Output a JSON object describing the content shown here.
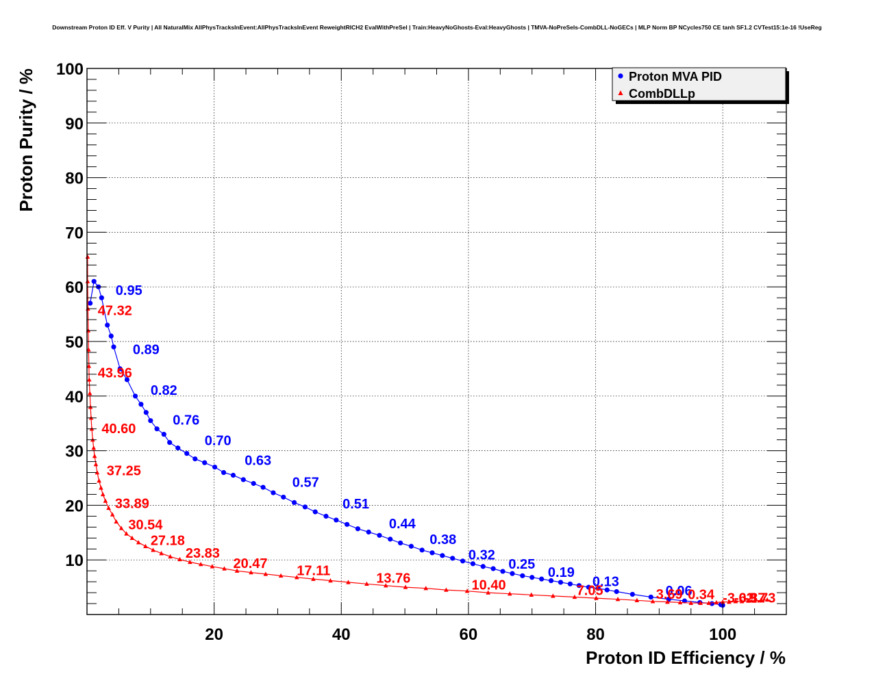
{
  "chart_data": {
    "type": "scatter",
    "title": "Downstream Proton ID Eff. V Purity | All NaturalMix AllPhysTracksInEvent:AllPhysTracksInEvent ReweightRICH2 EvalWithPreSel | Train:HeavyNoGhosts-Eval:HeavyGhosts | TMVA-NoPreSels-CombDLL-NoGECs | MLP Norm BP NCycles750 CE tanh SF1.2 CVTest15:1e-16 !UseReg",
    "xlabel": "Proton ID Efficiency / %",
    "ylabel": "Proton Purity / %",
    "xlim": [
      0,
      110
    ],
    "ylim": [
      0,
      100
    ],
    "x_ticks": [
      "20",
      "40",
      "60",
      "80",
      "100"
    ],
    "y_ticks": [
      "10",
      "20",
      "30",
      "40",
      "50",
      "60",
      "70",
      "80",
      "90",
      "100"
    ],
    "grid": true,
    "legend_position": "top-right",
    "series": [
      {
        "name": "Proton MVA PID",
        "color": "#0000ff",
        "marker": "circle",
        "x": [
          0.5,
          1.1,
          1.8,
          2.3,
          3.2,
          3.8,
          4.2,
          5.2,
          6.3,
          7.6,
          8.5,
          9.3,
          10.0,
          11.0,
          12.1,
          13.0,
          14.3,
          15.7,
          17.0,
          18.5,
          20.1,
          21.5,
          23.0,
          24.6,
          26.2,
          27.7,
          29.3,
          30.9,
          32.6,
          34.3,
          35.9,
          37.6,
          39.2,
          40.9,
          42.6,
          44.3,
          46.0,
          47.7,
          49.3,
          51.0,
          52.7,
          54.3,
          55.9,
          57.5,
          59.1,
          60.7,
          62.3,
          63.9,
          65.4,
          66.9,
          68.5,
          70.0,
          71.5,
          73.0,
          74.5,
          76.0,
          77.4,
          78.9,
          80.4,
          81.8,
          83.3,
          85.8,
          88.7,
          91.5,
          94.0,
          96.4,
          98.3,
          99.7,
          100.0
        ],
        "y": [
          57,
          61,
          60,
          58,
          53,
          51,
          49,
          45,
          43,
          40,
          38.5,
          37,
          35.5,
          34,
          33,
          31.5,
          30.5,
          29.5,
          28.5,
          27.8,
          27,
          26,
          25.5,
          24.7,
          24,
          23.3,
          22.3,
          21.5,
          20.5,
          19.7,
          18.8,
          18,
          17.3,
          16.5,
          15.7,
          15.1,
          14.5,
          13.8,
          13.1,
          12.5,
          11.8,
          11.3,
          10.8,
          10.3,
          9.8,
          9.3,
          8.8,
          8.4,
          7.9,
          7.5,
          7.1,
          6.8,
          6.5,
          6.2,
          5.9,
          5.6,
          5.3,
          5.0,
          4.8,
          4.5,
          4.2,
          3.7,
          3.2,
          2.8,
          2.5,
          2.2,
          2.0,
          1.8,
          1.7
        ],
        "labels": [
          {
            "text": "0.95",
            "x": 4.5,
            "y": 58.5
          },
          {
            "text": "0.89",
            "x": 7.2,
            "y": 47.7
          },
          {
            "text": "0.82",
            "x": 10.0,
            "y": 40.2
          },
          {
            "text": "0.76",
            "x": 13.5,
            "y": 34.8
          },
          {
            "text": "0.70",
            "x": 18.5,
            "y": 31.0
          },
          {
            "text": "0.63",
            "x": 24.8,
            "y": 27.4
          },
          {
            "text": "0.57",
            "x": 32.3,
            "y": 23.4
          },
          {
            "text": "0.51",
            "x": 40.2,
            "y": 19.4
          },
          {
            "text": "0.44",
            "x": 47.5,
            "y": 15.8
          },
          {
            "text": "0.38",
            "x": 53.9,
            "y": 12.9
          },
          {
            "text": "0.32",
            "x": 60.0,
            "y": 10.1
          },
          {
            "text": "0.25",
            "x": 66.3,
            "y": 8.4
          },
          {
            "text": "0.19",
            "x": 72.5,
            "y": 6.9
          },
          {
            "text": "0.13",
            "x": 79.5,
            "y": 5.2
          },
          {
            "text": "0.06",
            "x": 91.0,
            "y": 3.5
          }
        ]
      },
      {
        "name": "CombDLLp",
        "color": "#ff0000",
        "marker": "triangle",
        "x": [
          0.1,
          0.1,
          0.15,
          0.2,
          0.25,
          0.3,
          0.35,
          0.45,
          0.55,
          0.65,
          0.75,
          0.9,
          1.05,
          1.2,
          1.4,
          1.6,
          1.9,
          2.2,
          2.5,
          2.9,
          3.4,
          4.0,
          4.6,
          5.4,
          6.2,
          7.1,
          8.1,
          9.2,
          10.4,
          11.7,
          13.1,
          14.6,
          16.2,
          17.9,
          19.7,
          21.6,
          23.6,
          25.8,
          28.1,
          30.5,
          33.0,
          35.6,
          38.3,
          41.1,
          44.0,
          47.0,
          50.1,
          53.3,
          56.5,
          59.8,
          63.1,
          66.5,
          69.9,
          73.3,
          76.7,
          80.1,
          83.5,
          86.5,
          89.0,
          91.3,
          93.3,
          95.0,
          96.5,
          97.8,
          99.0,
          100.0,
          101.0,
          102.0,
          103.0,
          104.0,
          105.0,
          106.0,
          107.0
        ],
        "y": [
          65.5,
          61.0,
          56.0,
          52.0,
          48.5,
          45.5,
          43.0,
          40.5,
          38.0,
          36.0,
          34.0,
          32.0,
          30.5,
          29.0,
          27.5,
          26.0,
          24.5,
          23.2,
          22.0,
          20.8,
          19.5,
          18.3,
          17.0,
          15.8,
          14.8,
          14.0,
          13.2,
          12.5,
          11.8,
          11.2,
          10.6,
          10.1,
          9.6,
          9.2,
          8.8,
          8.4,
          8.0,
          7.7,
          7.4,
          7.1,
          6.8,
          6.5,
          6.2,
          5.9,
          5.6,
          5.3,
          5.0,
          4.8,
          4.5,
          4.3,
          4.0,
          3.8,
          3.6,
          3.4,
          3.2,
          3.0,
          2.8,
          2.6,
          2.4,
          2.3,
          2.2,
          2.1,
          2.1,
          2.1,
          2.2,
          2.3,
          2.3,
          2.4,
          2.4,
          2.5,
          2.5,
          2.6,
          2.7
        ],
        "labels": [
          {
            "text": "47.32",
            "x": 1.7,
            "y": 54.8
          },
          {
            "text": "43.96",
            "x": 1.7,
            "y": 43.4
          },
          {
            "text": "40.60",
            "x": 2.3,
            "y": 33.2
          },
          {
            "text": "37.25",
            "x": 3.1,
            "y": 25.5
          },
          {
            "text": "33.89",
            "x": 4.4,
            "y": 19.5
          },
          {
            "text": "30.54",
            "x": 6.5,
            "y": 15.6
          },
          {
            "text": "27.18",
            "x": 10.0,
            "y": 12.7
          },
          {
            "text": "23.83",
            "x": 15.5,
            "y": 10.4
          },
          {
            "text": "20.47",
            "x": 23.0,
            "y": 8.5
          },
          {
            "text": "17.11",
            "x": 33.0,
            "y": 7.2
          },
          {
            "text": "13.76",
            "x": 45.5,
            "y": 5.8
          },
          {
            "text": "10.40",
            "x": 60.5,
            "y": 4.6
          },
          {
            "text": "7.05",
            "x": 77.0,
            "y": 3.6
          },
          {
            "text": "3.69",
            "x": 89.5,
            "y": 2.9
          },
          {
            "text": "0.34",
            "x": 94.5,
            "y": 2.8
          },
          {
            "text": "-3.02",
            "x": 100.0,
            "y": 2.2
          },
          {
            "text": "-6.37",
            "x": 101.8,
            "y": 2.2
          },
          {
            "text": "-9.73",
            "x": 103.4,
            "y": 2.2
          }
        ]
      }
    ]
  }
}
